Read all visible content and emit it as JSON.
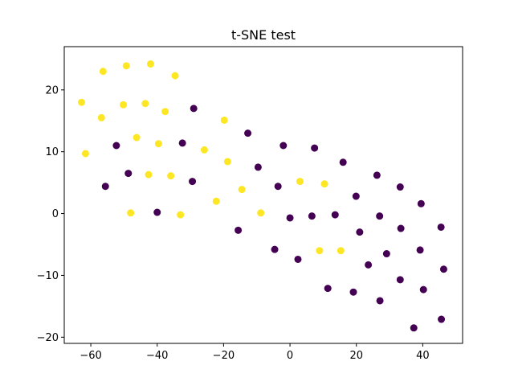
{
  "chart_data": {
    "type": "scatter",
    "title": "t-SNE test",
    "xlabel": "",
    "ylabel": "",
    "xlim": [
      -68,
      52
    ],
    "ylim": [
      -21,
      27
    ],
    "xticks": [
      -60,
      -40,
      -20,
      0,
      20,
      40
    ],
    "yticks": [
      -20,
      -10,
      0,
      10,
      20
    ],
    "grid": false,
    "colors": {
      "class_0": "#440154",
      "class_1": "#fde725"
    },
    "series": [
      {
        "color": "#fde725",
        "points": [
          [
            -56.3,
            23.0
          ],
          [
            -49.3,
            23.9
          ],
          [
            -42.0,
            24.2
          ],
          [
            -34.6,
            22.3
          ],
          [
            -62.8,
            18.0
          ],
          [
            -50.2,
            17.6
          ],
          [
            -43.6,
            17.8
          ],
          [
            -37.6,
            16.5
          ],
          [
            -56.8,
            15.5
          ],
          [
            -19.8,
            15.1
          ],
          [
            -46.2,
            12.3
          ],
          [
            -39.6,
            11.3
          ],
          [
            -61.6,
            9.7
          ],
          [
            -25.8,
            10.3
          ],
          [
            -18.8,
            8.4
          ],
          [
            -42.6,
            6.3
          ],
          [
            -35.9,
            6.1
          ],
          [
            -14.5,
            3.9
          ],
          [
            3.0,
            5.2
          ],
          [
            10.4,
            4.8
          ],
          [
            -22.2,
            2.0
          ],
          [
            -48.0,
            0.1
          ],
          [
            -33.0,
            -0.2
          ],
          [
            -8.8,
            0.1
          ],
          [
            8.9,
            -6.0
          ],
          [
            15.3,
            -6.0
          ]
        ]
      },
      {
        "color": "#440154",
        "points": [
          [
            -29.0,
            17.0
          ],
          [
            -12.7,
            13.0
          ],
          [
            -52.3,
            11.0
          ],
          [
            -32.4,
            11.4
          ],
          [
            -2.0,
            11.0
          ],
          [
            7.4,
            10.6
          ],
          [
            16.0,
            8.3
          ],
          [
            -48.7,
            6.5
          ],
          [
            -9.6,
            7.5
          ],
          [
            26.2,
            6.2
          ],
          [
            -29.4,
            5.2
          ],
          [
            -55.6,
            4.4
          ],
          [
            -3.6,
            4.4
          ],
          [
            33.2,
            4.3
          ],
          [
            19.9,
            2.8
          ],
          [
            39.5,
            1.6
          ],
          [
            -40.0,
            0.2
          ],
          [
            0.0,
            -0.7
          ],
          [
            6.6,
            -0.4
          ],
          [
            13.6,
            -0.2
          ],
          [
            27.0,
            -0.4
          ],
          [
            -15.6,
            -2.7
          ],
          [
            21.0,
            -3.0
          ],
          [
            33.4,
            -2.4
          ],
          [
            45.5,
            -2.2
          ],
          [
            -4.6,
            -5.8
          ],
          [
            2.4,
            -7.4
          ],
          [
            23.6,
            -8.3
          ],
          [
            29.1,
            -6.5
          ],
          [
            39.2,
            -5.9
          ],
          [
            46.3,
            -9.0
          ],
          [
            33.2,
            -10.7
          ],
          [
            11.4,
            -12.1
          ],
          [
            19.1,
            -12.7
          ],
          [
            40.2,
            -12.3
          ],
          [
            27.1,
            -14.1
          ],
          [
            45.6,
            -17.1
          ],
          [
            37.3,
            -18.5
          ]
        ]
      }
    ]
  }
}
